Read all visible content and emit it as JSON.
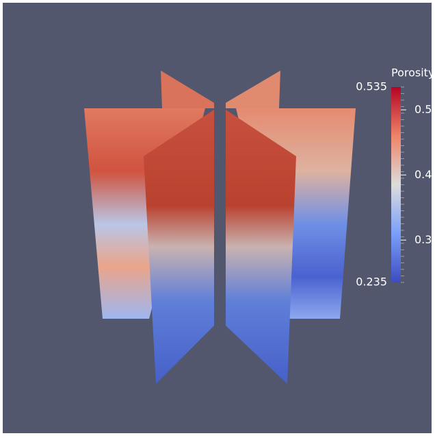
{
  "colorbar": {
    "title": "Porosity",
    "range": [
      0.235,
      0.535
    ],
    "ticks": [
      0.5,
      0.4,
      0.3
    ]
  }
}
